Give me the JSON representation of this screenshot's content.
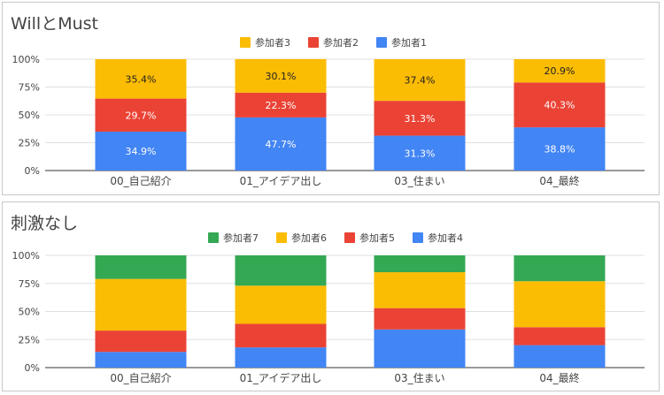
{
  "colors": {
    "participant1": "#4285f4",
    "participant2": "#ea4335",
    "participant3": "#fbbc04",
    "participant4": "#4285f4",
    "participant5": "#ea4335",
    "participant6": "#fbbc04",
    "participant7": "#34a853",
    "gridline": "#e0e0e0",
    "axis": "#444444"
  },
  "chart_data": [
    {
      "type": "bar",
      "stacked": true,
      "title": "WillとMust",
      "categories": [
        "00_自己紹介",
        "01_アイデア出し",
        "03_住まい",
        "04_最終"
      ],
      "series": [
        {
          "name": "参加者1",
          "values": [
            34.9,
            47.7,
            31.3,
            38.8
          ],
          "labels": [
            "34.9%",
            "47.7%",
            "31.3%",
            "38.8%"
          ],
          "color": "#4285f4"
        },
        {
          "name": "参加者2",
          "values": [
            29.7,
            22.3,
            31.3,
            40.3
          ],
          "labels": [
            "29.7%",
            "22.3%",
            "31.3%",
            "40.3%"
          ],
          "color": "#ea4335"
        },
        {
          "name": "参加者3",
          "values": [
            35.4,
            30.1,
            37.4,
            20.9
          ],
          "labels": [
            "35.4%",
            "30.1%",
            "37.4%",
            "20.9%"
          ],
          "color": "#fbbc04"
        }
      ],
      "legend": {
        "position": "top",
        "order": [
          "参加者3",
          "参加者2",
          "参加者1"
        ]
      },
      "yticks": [
        "0%",
        "25%",
        "50%",
        "75%",
        "100%"
      ],
      "ylim": [
        0,
        100
      ],
      "grid": true
    },
    {
      "type": "bar",
      "stacked": true,
      "title": "刺激なし",
      "categories": [
        "00_自己紹介",
        "01_アイデア出し",
        "03_住まい",
        "04_最終"
      ],
      "series": [
        {
          "name": "参加者4",
          "values": [
            14,
            18,
            34,
            20
          ],
          "labels": [
            "",
            "",
            "",
            ""
          ],
          "color": "#4285f4"
        },
        {
          "name": "参加者5",
          "values": [
            19,
            21,
            19,
            16
          ],
          "labels": [
            "",
            "",
            "",
            ""
          ],
          "color": "#ea4335"
        },
        {
          "name": "参加者6",
          "values": [
            46,
            34,
            32,
            41
          ],
          "labels": [
            "",
            "",
            "",
            ""
          ],
          "color": "#fbbc04"
        },
        {
          "name": "参加者7",
          "values": [
            21,
            27,
            15,
            23
          ],
          "labels": [
            "",
            "",
            "",
            ""
          ],
          "color": "#34a853"
        }
      ],
      "legend": {
        "position": "top",
        "order": [
          "参加者7",
          "参加者6",
          "参加者5",
          "参加者4"
        ]
      },
      "yticks": [
        "0%",
        "25%",
        "50%",
        "75%",
        "100%"
      ],
      "ylim": [
        0,
        100
      ],
      "grid": true
    }
  ]
}
